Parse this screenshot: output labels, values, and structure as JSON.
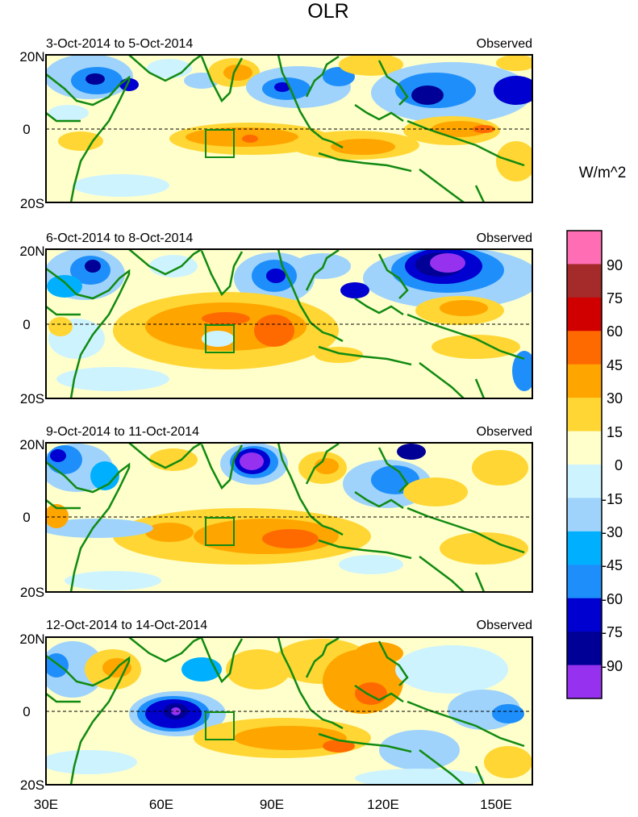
{
  "title": "OLR",
  "units": "W/m^2",
  "panels": [
    {
      "date_range": "3-Oct-2014 to 5-Oct-2014",
      "label": "Observed"
    },
    {
      "date_range": "6-Oct-2014 to 8-Oct-2014",
      "label": "Observed"
    },
    {
      "date_range": "9-Oct-2014 to 11-Oct-2014",
      "label": "Observed"
    },
    {
      "date_range": "12-Oct-2014 to 14-Oct-2014",
      "label": "Observed"
    }
  ],
  "lat_labels": [
    "20N",
    "0",
    "20S"
  ],
  "lon_labels": [
    "30E",
    "60E",
    "90E",
    "120E",
    "150E"
  ],
  "colorbar": {
    "labels": [
      "90",
      "75",
      "60",
      "45",
      "30",
      "15",
      "0",
      "-15",
      "-30",
      "-45",
      "-60",
      "-75",
      "-90"
    ],
    "colors": [
      "#ff6eb4",
      "#a52a2a",
      "#d10000",
      "#ff6a00",
      "#ffa500",
      "#ffd633",
      "#ffffcc",
      "#cdf3ff",
      "#9fd3fb",
      "#00b0ff",
      "#1e8ffa",
      "#0000d0",
      "#000096",
      "#9632ef"
    ]
  },
  "colors": {
    "coastline": "#118a11",
    "box": "#118a11"
  }
}
